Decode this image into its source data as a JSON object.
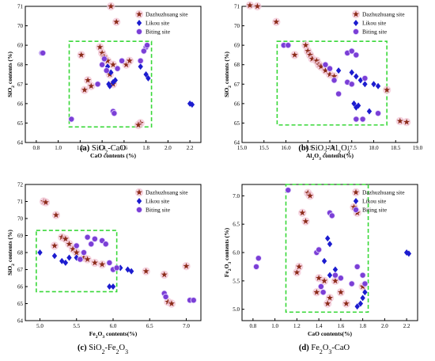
{
  "legend": {
    "dazhuzhuang": "Dazhuzhuang site",
    "likou": "Likou site",
    "biting": "Biting site"
  },
  "colors": {
    "star": "#8b2a18",
    "diamond": "#1c1ccf",
    "circle": "#7b3fd6",
    "star_halo": "#f2c6d6",
    "green_box": "#38d838"
  },
  "chart_data": [
    {
      "id": "a",
      "type": "scatter",
      "caption": {
        "label": "(a)",
        "title": "SiO2-CaO"
      },
      "xlabel": "CaO contents (%)",
      "ylabel": "SiO2 contents (%)",
      "xlim": [
        0.7,
        2.3
      ],
      "ylim": [
        64,
        71
      ],
      "xticks": [
        0.8,
        1.0,
        1.2,
        1.4,
        1.6,
        1.8,
        2.0,
        2.2
      ],
      "yticks": [
        64,
        65,
        66,
        67,
        68,
        69,
        70,
        71
      ],
      "box": {
        "x": [
          1.1,
          1.85
        ],
        "y": [
          64.8,
          69.2
        ]
      },
      "series": [
        {
          "name": "Dazhuzhuang site",
          "marker": "star",
          "points": [
            [
              1.48,
              71.0
            ],
            [
              1.53,
              70.2
            ],
            [
              1.21,
              68.5
            ],
            [
              1.38,
              68.9
            ],
            [
              1.4,
              68.6
            ],
            [
              1.42,
              68.4
            ],
            [
              1.45,
              68.2
            ],
            [
              1.5,
              68.0
            ],
            [
              1.62,
              68.0
            ],
            [
              1.65,
              68.2
            ],
            [
              1.27,
              67.2
            ],
            [
              1.24,
              66.7
            ],
            [
              1.3,
              66.9
            ],
            [
              1.5,
              67.0
            ],
            [
              1.75,
              65.0
            ],
            [
              1.73,
              64.9
            ],
            [
              1.47,
              67.5
            ]
          ]
        },
        {
          "name": "Likou site",
          "marker": "diamond",
          "points": [
            [
              1.45,
              67.9
            ],
            [
              1.48,
              67.6
            ],
            [
              1.5,
              67.1
            ],
            [
              1.46,
              67.0
            ],
            [
              1.52,
              67.2
            ],
            [
              1.75,
              67.9
            ],
            [
              1.8,
              67.5
            ],
            [
              1.82,
              67.3
            ],
            [
              2.2,
              66.0
            ],
            [
              2.22,
              65.95
            ],
            [
              1.47,
              66.9
            ]
          ]
        },
        {
          "name": "Biting site",
          "marker": "circle",
          "points": [
            [
              0.85,
              68.6
            ],
            [
              0.86,
              68.6
            ],
            [
              1.12,
              65.2
            ],
            [
              1.36,
              67.0
            ],
            [
              1.4,
              68.0
            ],
            [
              1.42,
              68.3
            ],
            [
              1.44,
              67.7
            ],
            [
              1.5,
              65.6
            ],
            [
              1.51,
              65.5
            ],
            [
              1.54,
              67.8
            ],
            [
              1.58,
              68.2
            ],
            [
              1.75,
              68.2
            ],
            [
              1.8,
              68.9
            ],
            [
              1.81,
              69.0
            ],
            [
              1.78,
              68.7
            ]
          ]
        }
      ]
    },
    {
      "id": "b",
      "type": "scatter",
      "caption": {
        "label": "(b)",
        "title": "SiO2-Al2O3"
      },
      "xlabel": "Al2O3 contents(%)",
      "ylabel": "SiO2 contents (%)",
      "xlim": [
        15.0,
        19.0
      ],
      "ylim": [
        64,
        71
      ],
      "xticks": [
        15.0,
        15.5,
        16.0,
        16.5,
        17.0,
        17.5,
        18.0,
        18.5,
        19.0
      ],
      "yticks": [
        64,
        65,
        66,
        67,
        68,
        69,
        70,
        71
      ],
      "box": {
        "x": [
          15.8,
          18.3
        ],
        "y": [
          64.9,
          69.2
        ]
      },
      "series": [
        {
          "name": "Dazhuzhuang site",
          "marker": "star",
          "points": [
            [
              15.18,
              71.05
            ],
            [
              15.35,
              71.0
            ],
            [
              15.78,
              70.2
            ],
            [
              16.2,
              68.5
            ],
            [
              16.45,
              69.0
            ],
            [
              16.5,
              68.7
            ],
            [
              16.55,
              68.5
            ],
            [
              16.6,
              68.3
            ],
            [
              16.7,
              68.2
            ],
            [
              16.75,
              68.0
            ],
            [
              16.8,
              67.9
            ],
            [
              16.9,
              67.7
            ],
            [
              17.0,
              67.5
            ],
            [
              17.1,
              67.4
            ],
            [
              18.3,
              66.7
            ],
            [
              18.6,
              65.1
            ],
            [
              18.75,
              65.05
            ]
          ]
        },
        {
          "name": "Likou site",
          "marker": "diamond",
          "points": [
            [
              17.2,
              67.7
            ],
            [
              17.5,
              67.6
            ],
            [
              17.6,
              67.4
            ],
            [
              17.7,
              67.2
            ],
            [
              17.8,
              67.0
            ],
            [
              18.0,
              67.0
            ],
            [
              18.1,
              66.9
            ],
            [
              17.55,
              66.0
            ],
            [
              17.65,
              65.9
            ],
            [
              17.6,
              65.8
            ],
            [
              17.9,
              65.6
            ]
          ]
        },
        {
          "name": "Biting site",
          "marker": "circle",
          "points": [
            [
              15.95,
              69.0
            ],
            [
              16.05,
              69.0
            ],
            [
              16.9,
              68.0
            ],
            [
              17.0,
              67.8
            ],
            [
              17.4,
              68.6
            ],
            [
              17.5,
              68.7
            ],
            [
              17.6,
              68.5
            ],
            [
              17.1,
              67.2
            ],
            [
              17.4,
              67.1
            ],
            [
              17.5,
              67.0
            ],
            [
              17.6,
              65.2
            ],
            [
              17.75,
              65.2
            ],
            [
              18.1,
              65.5
            ],
            [
              17.2,
              66.5
            ],
            [
              17.8,
              67.3
            ]
          ]
        }
      ]
    },
    {
      "id": "c",
      "type": "scatter",
      "caption": {
        "label": "(c)",
        "title": "SiO2-Fe2O3"
      },
      "xlabel": "Fe2O3 contents(%)",
      "ylabel": "SiO2 contents (%)",
      "xlim": [
        4.8,
        7.2
      ],
      "ylim": [
        64,
        72
      ],
      "xticks": [
        5.0,
        5.5,
        6.0,
        6.5,
        7.0
      ],
      "yticks": [
        64,
        65,
        66,
        67,
        68,
        69,
        70,
        71,
        72
      ],
      "box": {
        "x": [
          4.95,
          6.05
        ],
        "y": [
          65.7,
          69.3
        ]
      },
      "series": [
        {
          "name": "Dazhuzhuang site",
          "marker": "star",
          "points": [
            [
              5.05,
              71.0
            ],
            [
              5.08,
              70.95
            ],
            [
              5.22,
              70.2
            ],
            [
              5.2,
              68.4
            ],
            [
              5.3,
              68.9
            ],
            [
              5.35,
              68.8
            ],
            [
              5.4,
              68.5
            ],
            [
              5.45,
              68.2
            ],
            [
              5.5,
              68.0
            ],
            [
              5.6,
              67.7
            ],
            [
              5.65,
              67.6
            ],
            [
              5.75,
              67.4
            ],
            [
              5.85,
              67.3
            ],
            [
              6.45,
              66.9
            ],
            [
              6.7,
              66.7
            ],
            [
              6.75,
              65.1
            ],
            [
              6.8,
              65.0
            ],
            [
              7.0,
              67.2
            ]
          ]
        },
        {
          "name": "Likou site",
          "marker": "diamond",
          "points": [
            [
              5.0,
              68.0
            ],
            [
              5.2,
              67.8
            ],
            [
              5.3,
              67.5
            ],
            [
              5.35,
              67.4
            ],
            [
              5.4,
              67.7
            ],
            [
              5.5,
              67.7
            ],
            [
              5.95,
              66.0
            ],
            [
              6.0,
              66.0
            ],
            [
              6.1,
              67.1
            ],
            [
              6.2,
              67.0
            ],
            [
              6.25,
              66.9
            ]
          ]
        },
        {
          "name": "Biting site",
          "marker": "circle",
          "points": [
            [
              5.5,
              68.4
            ],
            [
              5.6,
              68.0
            ],
            [
              5.7,
              68.5
            ],
            [
              5.75,
              68.8
            ],
            [
              5.85,
              68.7
            ],
            [
              5.9,
              68.5
            ],
            [
              5.95,
              67.4
            ],
            [
              6.0,
              67.0
            ],
            [
              6.05,
              67.1
            ],
            [
              5.65,
              68.9
            ],
            [
              6.7,
              65.6
            ],
            [
              6.72,
              65.4
            ],
            [
              7.05,
              65.2
            ],
            [
              7.1,
              65.2
            ],
            [
              5.55,
              67.6
            ]
          ]
        }
      ]
    },
    {
      "id": "d",
      "type": "scatter",
      "caption": {
        "label": "(d)",
        "title": "Fe2O3-CaO"
      },
      "xlabel": "CaO contents(%)",
      "ylabel": "Fe2O3 contents (%)",
      "xlim": [
        0.7,
        2.3
      ],
      "ylim": [
        4.8,
        7.2
      ],
      "xticks": [
        0.8,
        1.0,
        1.2,
        1.4,
        1.6,
        1.8,
        2.0,
        2.2
      ],
      "yticks": [
        5.0,
        5.5,
        6.0,
        6.5,
        7.0
      ],
      "box": {
        "x": [
          1.1,
          1.85
        ],
        "y": [
          4.95,
          7.2
        ]
      },
      "series": [
        {
          "name": "Dazhuzhuang site",
          "marker": "star",
          "points": [
            [
              1.2,
              5.65
            ],
            [
              1.22,
              5.75
            ],
            [
              1.25,
              6.7
            ],
            [
              1.28,
              6.55
            ],
            [
              1.3,
              7.05
            ],
            [
              1.32,
              7.0
            ],
            [
              1.38,
              5.3
            ],
            [
              1.4,
              5.55
            ],
            [
              1.45,
              5.5
            ],
            [
              1.5,
              5.2
            ],
            [
              1.55,
              5.5
            ],
            [
              1.6,
              5.3
            ],
            [
              1.72,
              6.8
            ],
            [
              1.75,
              6.7
            ],
            [
              1.8,
              5.4
            ],
            [
              1.48,
              5.1
            ],
            [
              1.65,
              5.1
            ]
          ]
        },
        {
          "name": "Likou site",
          "marker": "diamond",
          "points": [
            [
              1.48,
              6.25
            ],
            [
              1.5,
              6.15
            ],
            [
              1.45,
              5.85
            ],
            [
              1.5,
              5.6
            ],
            [
              1.55,
              5.7
            ],
            [
              1.75,
              5.05
            ],
            [
              1.78,
              5.1
            ],
            [
              1.8,
              5.2
            ],
            [
              1.82,
              5.3
            ],
            [
              2.2,
              6.0
            ],
            [
              2.22,
              5.98
            ]
          ]
        },
        {
          "name": "Biting site",
          "marker": "circle",
          "points": [
            [
              0.83,
              5.75
            ],
            [
              0.85,
              5.9
            ],
            [
              1.12,
              7.1
            ],
            [
              1.38,
              6.0
            ],
            [
              1.4,
              6.05
            ],
            [
              1.42,
              5.4
            ],
            [
              1.44,
              5.3
            ],
            [
              1.5,
              6.7
            ],
            [
              1.52,
              6.65
            ],
            [
              1.55,
              5.6
            ],
            [
              1.6,
              5.55
            ],
            [
              1.7,
              5.45
            ],
            [
              1.75,
              5.75
            ],
            [
              1.8,
              5.6
            ],
            [
              1.82,
              5.45
            ]
          ]
        }
      ]
    }
  ]
}
